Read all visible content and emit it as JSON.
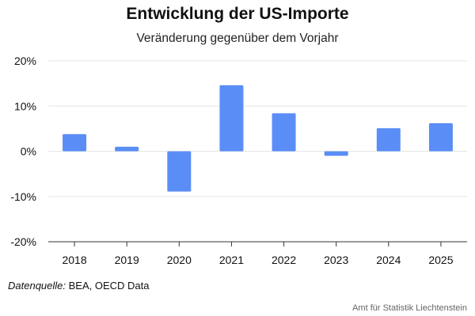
{
  "chart_data": {
    "type": "bar",
    "title": "Entwicklung der US-Importe",
    "subtitle": "Veränderung gegenüber dem Vorjahr",
    "categories": [
      "2018",
      "2019",
      "2020",
      "2021",
      "2022",
      "2023",
      "2024",
      "2025"
    ],
    "series": [
      {
        "values": [
          3.8,
          1.0,
          -8.9,
          14.6,
          8.4,
          -1.0,
          5.1,
          6.2
        ]
      }
    ],
    "ylim": [
      -20,
      20
    ],
    "yticks": [
      20,
      10,
      0,
      -10,
      -20
    ],
    "ytick_labels": [
      "20%",
      "10%",
      "0%",
      "-10%",
      "-20%"
    ],
    "grid": true,
    "bar_color": "#5B8DF6"
  },
  "footer": {
    "source_label": "Datenquelle:",
    "source_text": " BEA, OECD Data",
    "credit": "Amt für Statistik Liechtenstein"
  }
}
